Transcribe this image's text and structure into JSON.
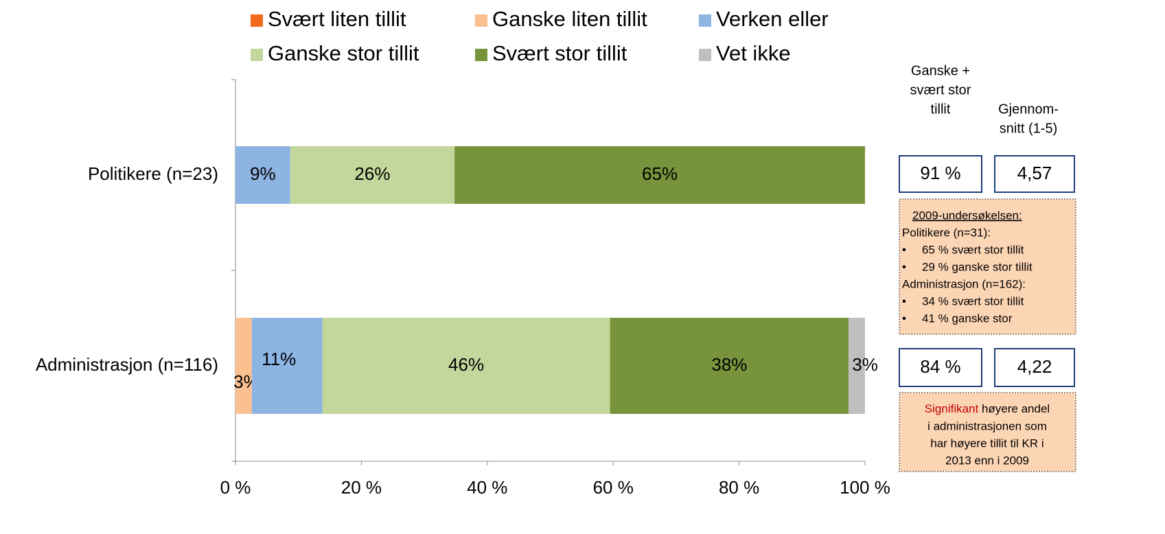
{
  "chart_data": {
    "type": "stacked-bar-horizontal",
    "categories": [
      "Politikere (n=23)",
      "Administrasjon (n=116)"
    ],
    "series": [
      {
        "name": "Svært liten tillit",
        "color": "#f26b1d",
        "values": [
          null,
          null
        ]
      },
      {
        "name": "Ganske liten tillit",
        "color": "#fac090",
        "values": [
          null,
          2.6
        ],
        "value_labels": [
          null,
          "3%"
        ]
      },
      {
        "name": "Verken eller",
        "color": "#8eb4e3",
        "values": [
          8.7,
          11.2
        ],
        "value_labels": [
          "9%",
          "11%"
        ]
      },
      {
        "name": "Ganske stor tillit",
        "color": "#c3d69b",
        "values": [
          26.1,
          45.7
        ],
        "value_labels": [
          "26%",
          "46%"
        ]
      },
      {
        "name": "Svært stor tillit",
        "color": "#77933c",
        "values": [
          65.2,
          37.9
        ],
        "value_labels": [
          "65%",
          "38%"
        ]
      },
      {
        "name": "Vet ikke",
        "color": "#bfbfbf",
        "values": [
          null,
          2.6
        ],
        "value_labels": [
          null,
          "3%"
        ]
      }
    ],
    "xlim": [
      0,
      100
    ],
    "xticks": [
      {
        "value": 0,
        "label": "0 %"
      },
      {
        "value": 20,
        "label": "20 %"
      },
      {
        "value": 40,
        "label": "40 %"
      },
      {
        "value": 60,
        "label": "60 %"
      },
      {
        "value": 80,
        "label": "80 %"
      },
      {
        "value": 100,
        "label": "100 %"
      }
    ],
    "legend": "top"
  },
  "side_panel": {
    "header_share": [
      "Ganske +",
      "svært stor",
      "tillit"
    ],
    "header_mean": [
      "Gjennom-",
      "snitt (1-5)"
    ],
    "rows": [
      [
        "91 %",
        "4,57"
      ],
      [
        "84 %",
        "4,22"
      ]
    ],
    "note_2009": {
      "title": "2009-undersøkelsen:",
      "lines": [
        "Politikere (n=31):",
        "65 % svært stor tillit",
        "29 % ganske stor tillit",
        "Administrasjon (n=162):",
        "34 % svært stor tillit",
        "41 % ganske stor"
      ]
    },
    "note_signif": {
      "highlight": "Signifikant",
      "lines": [
        " høyere andel",
        "i administrasjonen som",
        "har høyere tillit til KR i",
        "2013 enn i 2009"
      ]
    }
  }
}
